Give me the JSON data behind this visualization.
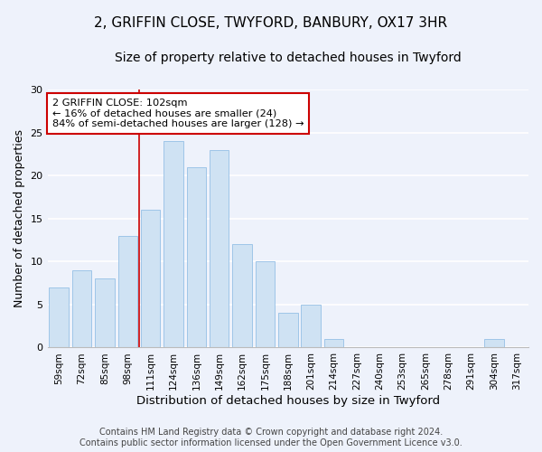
{
  "title_line1": "2, GRIFFIN CLOSE, TWYFORD, BANBURY, OX17 3HR",
  "title_line2": "Size of property relative to detached houses in Twyford",
  "xlabel": "Distribution of detached houses by size in Twyford",
  "ylabel": "Number of detached properties",
  "categories": [
    "59sqm",
    "72sqm",
    "85sqm",
    "98sqm",
    "111sqm",
    "124sqm",
    "136sqm",
    "149sqm",
    "162sqm",
    "175sqm",
    "188sqm",
    "201sqm",
    "214sqm",
    "227sqm",
    "240sqm",
    "253sqm",
    "265sqm",
    "278sqm",
    "291sqm",
    "304sqm",
    "317sqm"
  ],
  "values": [
    7,
    9,
    8,
    13,
    16,
    24,
    21,
    23,
    12,
    10,
    4,
    5,
    1,
    0,
    0,
    0,
    0,
    0,
    0,
    1,
    0
  ],
  "bar_color": "#cfe2f3",
  "bar_edge_color": "#9fc5e8",
  "vline_x_index": 3.5,
  "vline_color": "#cc0000",
  "annotation_line1": "2 GRIFFIN CLOSE: 102sqm",
  "annotation_line2": "← 16% of detached houses are smaller (24)",
  "annotation_line3": "84% of semi-detached houses are larger (128) →",
  "annotation_box_color": "#ffffff",
  "annotation_box_edge": "#cc0000",
  "ylim": [
    0,
    30
  ],
  "yticks": [
    0,
    5,
    10,
    15,
    20,
    25,
    30
  ],
  "background_color": "#eef2fb",
  "grid_color": "#ffffff",
  "footer_line1": "Contains HM Land Registry data © Crown copyright and database right 2024.",
  "footer_line2": "Contains public sector information licensed under the Open Government Licence v3.0."
}
